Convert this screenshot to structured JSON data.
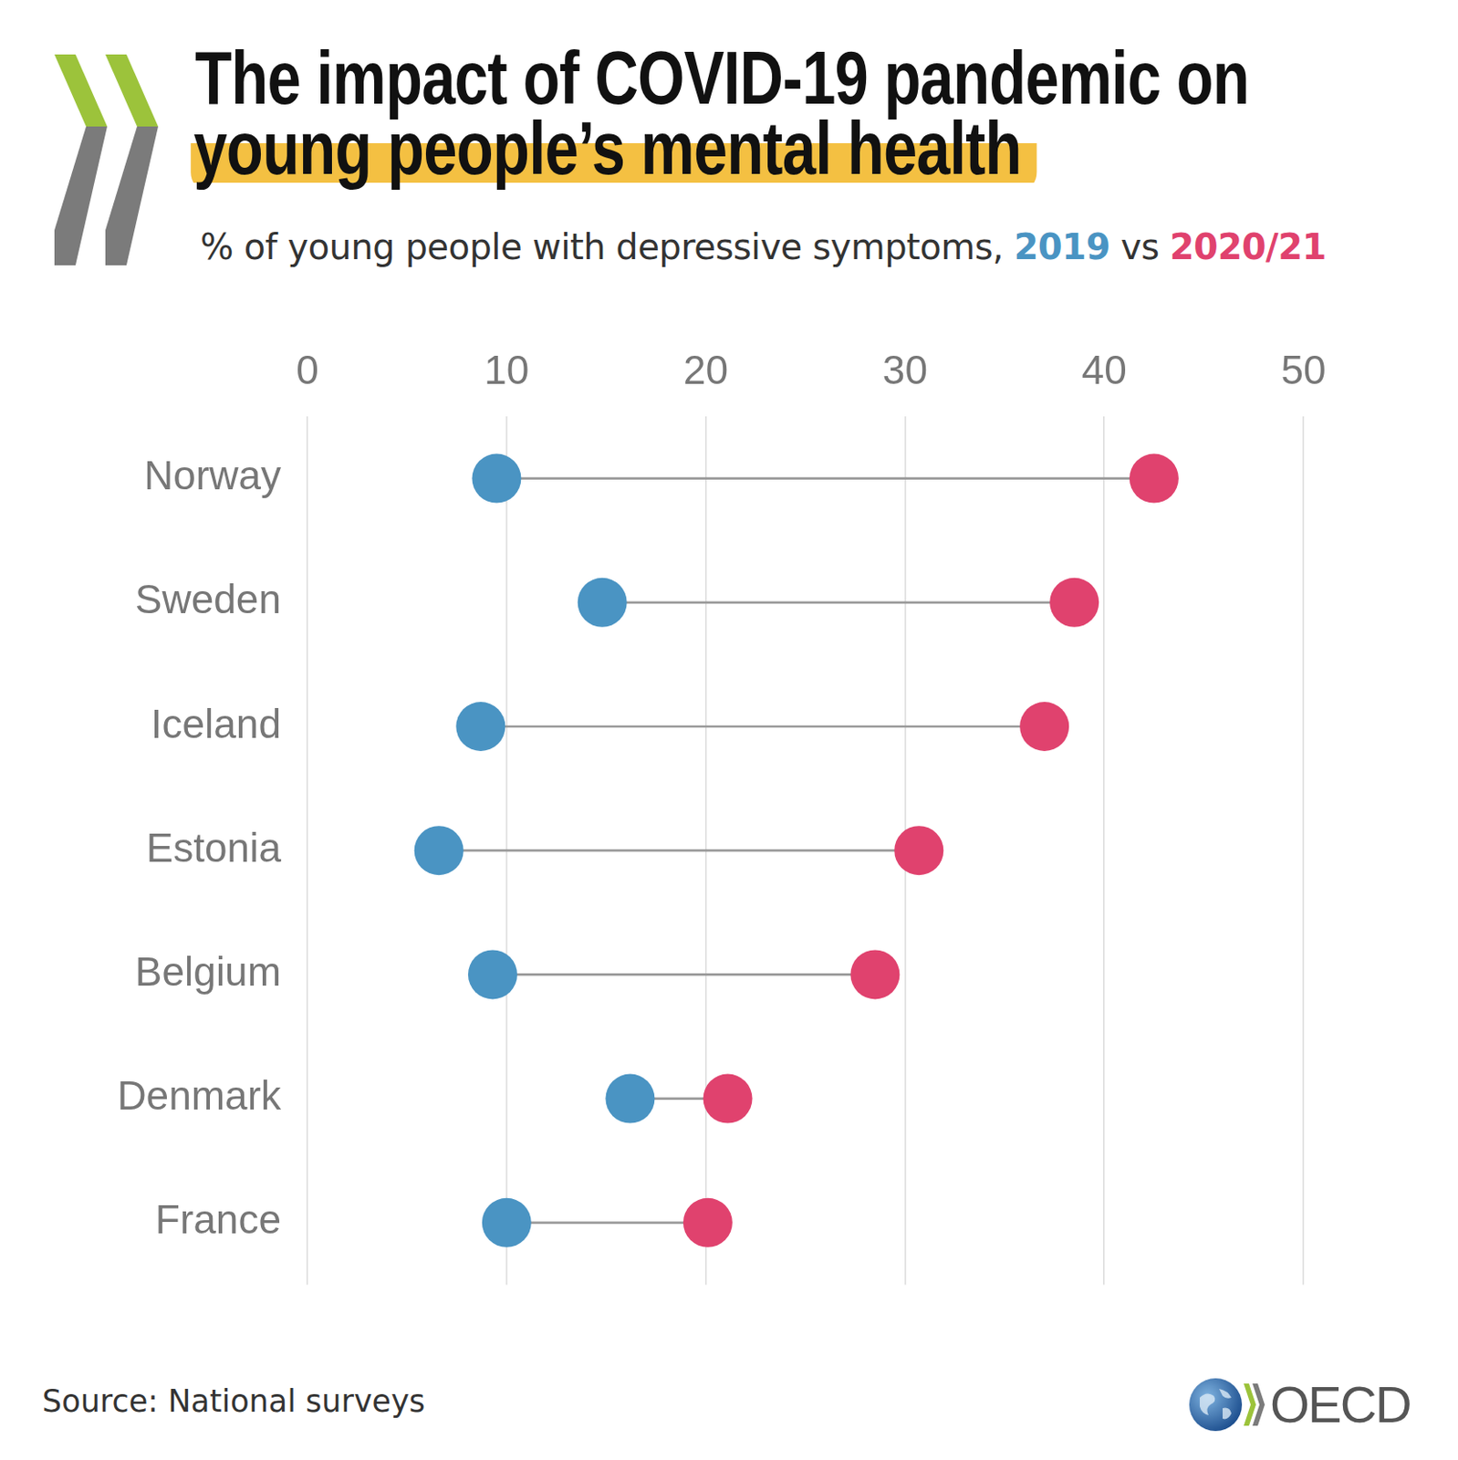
{
  "chart_data": {
    "type": "dumbbell",
    "title": [
      "The impact of COVID-19 pandemic on",
      "young people’s mental health"
    ],
    "subtitle": "% of young people with depressive symptoms, 2019 vs 2020/21",
    "source": "Source: National surveys",
    "logo_text": "OECD",
    "orientation": "horizontal",
    "categories": [
      "Norway",
      "Sweden",
      "Iceland",
      "Estonia",
      "Belgium",
      "Denmark",
      "France"
    ],
    "series": [
      {
        "name": "2019",
        "color": "#4a94c3",
        "marker": "circle",
        "values": [
          9.5,
          14.8,
          8.7,
          6.6,
          9.3,
          16.2,
          10.0
        ]
      },
      {
        "name": "2020/21",
        "color": "#e0426e",
        "marker": "circle",
        "values": [
          42.5,
          38.5,
          37.0,
          30.7,
          28.5,
          21.1,
          20.1
        ]
      }
    ],
    "xlim": [
      0,
      50
    ],
    "xticks": [
      0,
      10,
      20,
      30,
      40,
      50
    ],
    "grid": true,
    "legend": false
  }
}
